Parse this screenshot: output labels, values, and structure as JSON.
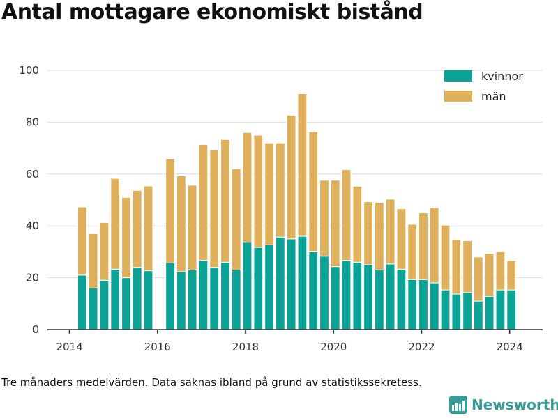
{
  "title": "Antal mottagare ekonomiskt bistånd",
  "footnote": "Tre månaders medelvärden. Data saknas ibland på grund av statistikssekretess.",
  "brand": {
    "name": "Newsworthy",
    "icon": "bar-chart-logo-icon",
    "color": "#3a9a9a"
  },
  "colors": {
    "kvinnor": "#0aa396",
    "man": "#dfb05c",
    "grid": "#dddddd",
    "axis": "#333333"
  },
  "chart_data": {
    "type": "bar",
    "stacked": true,
    "title": "Antal mottagare ekonomiskt bistånd",
    "xlabel": "",
    "ylabel": "",
    "ylim": [
      0,
      100
    ],
    "yticks": [
      0,
      20,
      40,
      60,
      80,
      100
    ],
    "xticks": [
      "2014",
      "2016",
      "2018",
      "2020",
      "2022",
      "2024"
    ],
    "xlim": [
      2013.5,
      2024.75
    ],
    "legend": "top-right",
    "grid": true,
    "x": [
      2014.29,
      2014.54,
      2014.79,
      2015.04,
      2015.29,
      2015.54,
      2015.79,
      2016.29,
      2016.54,
      2016.79,
      2017.04,
      2017.29,
      2017.54,
      2017.79,
      2018.04,
      2018.29,
      2018.54,
      2018.79,
      2019.04,
      2019.29,
      2019.54,
      2019.79,
      2020.04,
      2020.29,
      2020.54,
      2020.79,
      2021.04,
      2021.29,
      2021.54,
      2021.79,
      2022.04,
      2022.29,
      2022.54,
      2022.79,
      2023.04,
      2023.29,
      2023.54,
      2023.79,
      2024.04
    ],
    "series": [
      {
        "name": "kvinnor",
        "color": "#0aa396",
        "values": [
          21,
          16,
          19,
          23.3,
          20,
          24,
          22.7,
          25.7,
          22.3,
          23,
          26.7,
          24,
          26,
          23,
          33.7,
          31.7,
          32.7,
          35.7,
          35,
          36,
          30,
          28.3,
          24.3,
          26.7,
          26,
          25,
          23,
          25.3,
          23.3,
          19.3,
          19.3,
          18,
          15.3,
          13.7,
          14.3,
          11,
          12.7,
          15.3,
          15.3
        ]
      },
      {
        "name": "män",
        "color": "#dfb05c",
        "values": [
          26.3,
          21,
          22.3,
          35,
          31,
          29.7,
          32.7,
          40.3,
          37,
          32.7,
          44.7,
          45.3,
          47.3,
          39,
          42.3,
          43.3,
          39.3,
          36.3,
          47.7,
          55,
          46.3,
          29.3,
          33.3,
          35,
          29.3,
          24.3,
          26,
          25,
          23.3,
          21.3,
          25.7,
          29,
          25,
          21,
          20,
          17,
          16.7,
          14.7,
          11.3
        ]
      }
    ]
  }
}
